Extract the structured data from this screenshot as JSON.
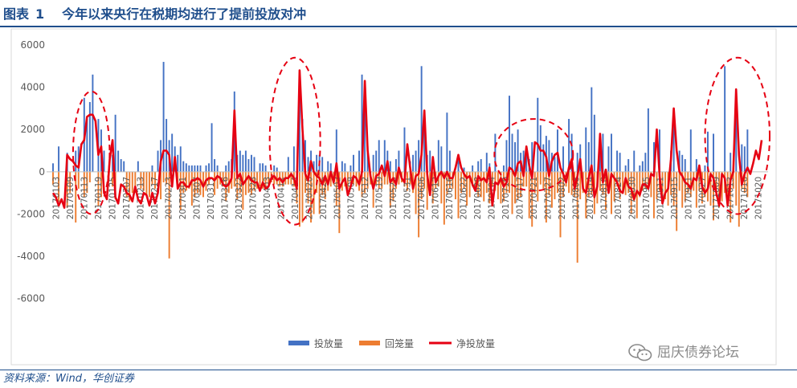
{
  "figure": {
    "label": "图表",
    "number": "1",
    "title": "今年以来央行在税期均进行了提前投放对冲",
    "source": "资料来源：Wind，华创证券",
    "watermark": "屈庆债券论坛",
    "watermark_icon": "wechat-icon"
  },
  "chart_data": {
    "type": "bar+line",
    "title": "",
    "xlabel": "",
    "ylabel": "",
    "ylim": [
      -7000,
      6000
    ],
    "yticks": [
      -6000,
      -4000,
      -2000,
      0,
      2000,
      4000,
      6000
    ],
    "grid": false,
    "legend_position": "bottom-center",
    "colors": {
      "inject": "#4472c4",
      "withdraw": "#ed7d31",
      "net": "#e60012",
      "ellipse": "#e60012"
    },
    "xtick_labels": [
      "20170103",
      "20170109",
      "20170113",
      "20170119",
      "20170125",
      "20170207",
      "20170213",
      "20170217",
      "20170223",
      "20170301",
      "20170307",
      "20170313",
      "20170316",
      "20170322",
      "20170328",
      "20170403",
      "20170411",
      "20170414",
      "20170420",
      "20170426",
      "20170502",
      "20170508",
      "20170512",
      "20170519",
      "20170525",
      "20170531",
      "20170606",
      "20170612",
      "20170616",
      "20170622",
      "20170628",
      "20170704",
      "20170710",
      "20170717",
      "20170721",
      "20170727",
      "20170802",
      "20170808",
      "20170814",
      "20170818",
      "20170824",
      "20170830",
      "20170905",
      "20170911",
      "20170915",
      "20170921",
      "20170927",
      "20171009",
      "20171013",
      "20171016",
      "20171020"
    ],
    "series": [
      {
        "name": "投放量",
        "kind": "bar",
        "values": [
          400,
          0,
          1200,
          0,
          0,
          900,
          0,
          0,
          1000,
          1200,
          0,
          3500,
          2500,
          3300,
          4600,
          0,
          2500,
          2000,
          1000,
          0,
          0,
          800,
          2700,
          1000,
          600,
          500,
          0,
          0,
          0,
          0,
          500,
          0,
          0,
          0,
          0,
          300,
          0,
          1000,
          1500,
          5200,
          2500,
          1500,
          1800,
          1200,
          800,
          1200,
          500,
          400,
          300,
          300,
          300,
          300,
          300,
          0,
          300,
          400,
          2300,
          600,
          300,
          0,
          0,
          300,
          500,
          600,
          3800,
          800,
          1000,
          800,
          1000,
          600,
          800,
          700,
          0,
          400,
          400,
          300,
          0,
          0,
          300,
          200,
          0,
          0,
          0,
          700,
          0,
          1200,
          0,
          4800,
          2500,
          1500,
          700,
          1000,
          500,
          800,
          800,
          700,
          0,
          500,
          400,
          0,
          2000,
          0,
          500,
          400,
          0,
          300,
          800,
          0,
          1000,
          4600,
          3400,
          1200,
          0,
          800,
          1000,
          1500,
          0,
          1500,
          1000,
          500,
          0,
          600,
          1000,
          0,
          2100,
          0,
          500,
          800,
          1000,
          1500,
          5000,
          2000,
          800,
          1000,
          0,
          0,
          1500,
          1200,
          0,
          2800,
          1000,
          0,
          0,
          700,
          0,
          200,
          0,
          0,
          300,
          0,
          500,
          600,
          0,
          900,
          400,
          0,
          1800,
          0,
          0,
          300,
          1500,
          3600,
          1800,
          1400,
          2000,
          900,
          1000,
          1100,
          600,
          1400,
          0,
          3500,
          2200,
          1300,
          1700,
          1500,
          900,
          700,
          2000,
          0,
          1200,
          0,
          2500,
          1800,
          0,
          900,
          1300,
          0,
          2100,
          1400,
          4000,
          2700,
          0,
          1500,
          1800,
          0,
          1200,
          1800,
          0,
          1000,
          900,
          0,
          300,
          600,
          0,
          1000,
          0,
          300,
          500,
          900,
          3000,
          0,
          1400,
          0,
          2000,
          0,
          0,
          0,
          1000,
          2800,
          0,
          1000,
          800,
          600,
          0,
          2000,
          0,
          600,
          0,
          0,
          300,
          1900,
          0,
          1800,
          0,
          0,
          0,
          5000,
          0,
          900,
          0,
          3000,
          0,
          1300,
          1200,
          2000
        ]
      },
      {
        "name": "回笼量",
        "kind": "bar",
        "values": [
          -600,
          0,
          -1400,
          0,
          0,
          -1700,
          -1000,
          0,
          -2400,
          -800,
          0,
          -1200,
          -1000,
          -500,
          0,
          0,
          -1600,
          -1200,
          0,
          0,
          0,
          -700,
          -1300,
          0,
          0,
          0,
          -1200,
          -1400,
          -1000,
          -1000,
          0,
          -800,
          -900,
          -1100,
          -1200,
          -600,
          -800,
          0,
          -1300,
          -500,
          -600,
          -4100,
          0,
          0,
          -600,
          -1800,
          -1000,
          -900,
          -800,
          -1600,
          -1200,
          -1000,
          -1100,
          -1200,
          -900,
          -600,
          0,
          -1100,
          -800,
          -600,
          -700,
          -1400,
          -1000,
          -800,
          -700,
          -1300,
          -1000,
          -1800,
          -1100,
          -1000,
          -1100,
          -900,
          -800,
          -700,
          -800,
          -700,
          -600,
          -500,
          -600,
          -600,
          -700,
          -700,
          -600,
          -600,
          -600,
          -700,
          -1500,
          -2600,
          -2400,
          -1000,
          -1500,
          -2400,
          -2000,
          -1000,
          -2000,
          -1100,
          -1300,
          -900,
          -700,
          -600,
          -1600,
          -2900,
          -900,
          -700,
          -800,
          -500,
          -600,
          -700,
          -900,
          -1200,
          -1000,
          -800,
          -600,
          -1700,
          -600,
          -800,
          -800,
          -600,
          -600,
          -1700,
          -1400,
          -800,
          -600,
          -500,
          -700,
          -900,
          -600,
          -1000,
          -2000,
          -3100,
          -1300,
          -800,
          -1800,
          -1000,
          -1500,
          -800,
          -700,
          -1500,
          -2500,
          -1100,
          -800,
          -800,
          -1300,
          -2200,
          -1000,
          -800,
          -1600,
          -1200,
          -700,
          -900,
          -1200,
          -1200,
          -1400,
          -1000,
          -1500,
          -700,
          -900,
          -1300,
          -1500,
          -1400,
          -1000,
          -1000,
          -2000,
          -1500,
          -1300,
          -1200,
          -700,
          -700,
          -2200,
          -2600,
          -1000,
          -1400,
          -600,
          -800,
          -2400,
          -1100,
          -1700,
          -1300,
          -1000,
          -3100,
          -1200,
          -700,
          -1000,
          -1100,
          -1200,
          -4300,
          -1300,
          -1000,
          -2200,
          -1200,
          -1100,
          -2000,
          -1500,
          -900,
          -1100,
          -1800,
          -900,
          -2000,
          -1400,
          -700,
          -1300,
          -900,
          -1100,
          -1000,
          -2000,
          -1400,
          -2200,
          -1200,
          -900,
          -800,
          -800,
          -1200,
          -2200,
          -1300,
          -900,
          -1400,
          -1300,
          -1600,
          -1100,
          -1600,
          -2800,
          -900,
          -1700,
          -1400,
          -1000,
          -1200,
          -900,
          -1700,
          -900,
          -1500,
          -1200,
          -1400,
          -1600,
          -2300,
          -1000,
          -1700,
          -1400,
          -1000,
          -1200,
          -2400,
          -800,
          -1600,
          -2600,
          -800,
          -1000,
          -1200
        ]
      },
      {
        "name": "净投放量",
        "kind": "line",
        "values": [
          -1000,
          -1200,
          -1600,
          -1300,
          -1700,
          800,
          600,
          500,
          300,
          200,
          1300,
          1500,
          2600,
          2700,
          2700,
          2400,
          800,
          1200,
          -1000,
          -1300,
          600,
          1500,
          -1200,
          -1500,
          -600,
          -700,
          -1000,
          -1100,
          -1400,
          -700,
          -1300,
          -1500,
          -1000,
          -1100,
          -1600,
          -1000,
          -1500,
          -1000,
          500,
          1000,
          1000,
          800,
          -700,
          700,
          -800,
          -500,
          -500,
          -700,
          -700,
          -400,
          -400,
          -300,
          -400,
          -700,
          -400,
          -300,
          -300,
          -400,
          -200,
          -300,
          -600,
          -700,
          -600,
          -300,
          2900,
          -300,
          -100,
          -600,
          -400,
          -200,
          -400,
          -500,
          -500,
          -900,
          -500,
          -800,
          -700,
          -300,
          -200,
          -400,
          -300,
          -500,
          -300,
          -300,
          -100,
          -300,
          -800,
          4800,
          2000,
          -100,
          -400,
          500,
          0,
          -200,
          -300,
          -600,
          -200,
          -600,
          0,
          -500,
          400,
          -800,
          -500,
          -300,
          -1100,
          -700,
          -200,
          -300,
          -600,
          0,
          4300,
          1000,
          -200,
          -800,
          -200,
          -100,
          300,
          -200,
          500,
          -500,
          -300,
          -600,
          200,
          -300,
          -500,
          1300,
          200,
          -800,
          -200,
          -100,
          800,
          2900,
          -100,
          -1100,
          700,
          -500,
          -200,
          0,
          -300,
          0,
          -300,
          -300,
          200,
          800,
          200,
          -100,
          -300,
          -200,
          -600,
          -900,
          -200,
          -400,
          -300,
          -500,
          200,
          -1600,
          -500,
          -600,
          -300,
          -700,
          -500,
          200,
          100,
          -200,
          400,
          500,
          -200,
          1200,
          300,
          -300,
          1400,
          1300,
          1000,
          1000,
          700,
          -200,
          500,
          800,
          900,
          200,
          -100,
          -500,
          200,
          600,
          -800,
          -200,
          600,
          -800,
          -1000,
          -300,
          300,
          -1200,
          -700,
          1800,
          -500,
          100,
          -1000,
          -100,
          -300,
          -500,
          -900,
          -1000,
          -300,
          -700,
          -800,
          -1300,
          -900,
          -1100,
          -600,
          -600,
          -800,
          -100,
          -200,
          2000,
          -200,
          -1500,
          -1000,
          -800,
          600,
          3000,
          1000,
          0,
          -200,
          -500,
          -600,
          -800,
          -300,
          -400,
          300,
          -700,
          -1000,
          -800,
          -100,
          -300,
          -1000,
          -1600,
          -100,
          -300,
          -1600,
          -400,
          0,
          3900,
          800,
          -600,
          -100,
          200,
          -100,
          400,
          1000,
          600,
          1500
        ]
      }
    ],
    "annotations": [
      {
        "shape": "dashed-ellipse",
        "x_range": [
          "20170113",
          "20170119"
        ],
        "y_range": [
          -2000,
          3800
        ]
      },
      {
        "shape": "dashed-ellipse",
        "x_range": [
          "20170411",
          "20170420"
        ],
        "y_range": [
          -2500,
          5400
        ]
      },
      {
        "shape": "dashed-ellipse",
        "x_range": [
          "20170710",
          "20170802"
        ],
        "y_range": [
          -900,
          2500
        ]
      },
      {
        "shape": "dashed-ellipse",
        "x_range": [
          "20171009",
          "20171020"
        ],
        "y_range": [
          -2000,
          5400
        ]
      }
    ]
  }
}
